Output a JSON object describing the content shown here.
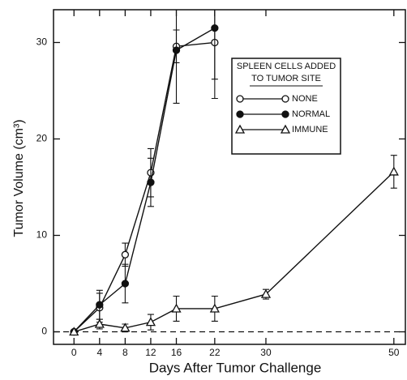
{
  "chart_data": {
    "type": "line",
    "xlabel": "Days After Tumor Challenge",
    "ylabel": "Tumor Volume (cm³)",
    "legend_title": [
      "SPLEEN CELLS ADDED",
      "TO TUMOR SITE"
    ],
    "xlim": [
      -3.2,
      51.8
    ],
    "xticks": [
      0,
      4,
      8,
      12,
      16,
      22,
      30,
      50
    ],
    "ylim": [
      -1.3,
      33.4
    ],
    "yticks": [
      0,
      10,
      20,
      30
    ],
    "zero_line_dashed": true,
    "color": "#111111",
    "series": [
      {
        "name": "NONE",
        "marker": "open-circle",
        "x": [
          0,
          4,
          8,
          12,
          16,
          22
        ],
        "values": [
          0,
          2.5,
          8,
          16.5,
          29.6,
          30.0
        ],
        "errors": [
          0,
          1.5,
          1.2,
          2.5,
          1.7,
          3.8
        ]
      },
      {
        "name": "NORMAL",
        "marker": "filled-circle",
        "x": [
          0,
          4,
          8,
          12,
          16,
          22
        ],
        "values": [
          0,
          2.8,
          5,
          15.5,
          29.2,
          31.5
        ],
        "errors": [
          0,
          1.5,
          2,
          2.5,
          5.5,
          7.3
        ]
      },
      {
        "name": "IMMUNE",
        "marker": "open-triangle",
        "x": [
          0,
          4,
          8,
          12,
          16,
          22,
          30,
          50
        ],
        "values": [
          0,
          0.8,
          0.4,
          1,
          2.4,
          2.4,
          3.9,
          16.6
        ],
        "errors": [
          0,
          0.5,
          0.4,
          0.8,
          1.3,
          1.3,
          0.5,
          1.7
        ]
      }
    ]
  }
}
